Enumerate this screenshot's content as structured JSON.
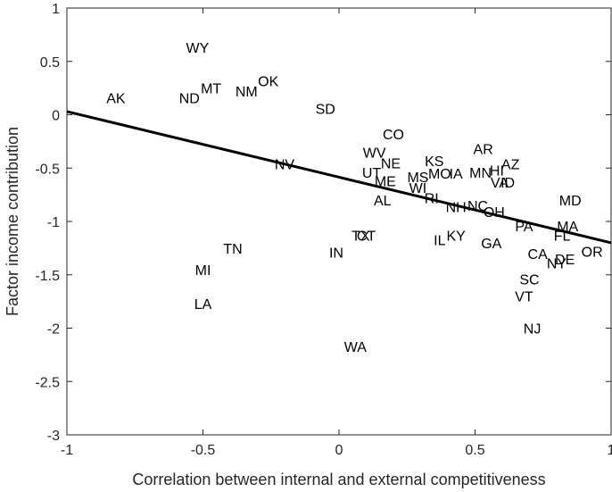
{
  "chart_data": {
    "type": "scatter",
    "title": "",
    "xlabel": "Correlation between internal and external competitiveness",
    "ylabel": "Factor income contribution",
    "xlim": [
      -1,
      1
    ],
    "ylim": [
      -3,
      1
    ],
    "xticks": [
      -1,
      -0.5,
      0,
      0.5,
      1
    ],
    "xtick_labels": [
      "-1",
      "-0.5",
      "0",
      "0.5",
      "1"
    ],
    "yticks": [
      -3,
      -2.5,
      -2,
      -1.5,
      -1,
      -0.5,
      0,
      0.5,
      1
    ],
    "ytick_labels": [
      "-3",
      "-2.5",
      "-2",
      "-1.5",
      "-1",
      "-0.5",
      "0",
      "0.5",
      "1"
    ],
    "grid": false,
    "legend": "none",
    "points": [
      {
        "label": "WY",
        "x": -0.52,
        "y": 0.63
      },
      {
        "label": "AK",
        "x": -0.82,
        "y": 0.16
      },
      {
        "label": "ND",
        "x": -0.55,
        "y": 0.16
      },
      {
        "label": "MT",
        "x": -0.47,
        "y": 0.25
      },
      {
        "label": "NM",
        "x": -0.34,
        "y": 0.22
      },
      {
        "label": "OK",
        "x": -0.26,
        "y": 0.32
      },
      {
        "label": "SD",
        "x": -0.05,
        "y": 0.06
      },
      {
        "label": "CO",
        "x": 0.2,
        "y": -0.18
      },
      {
        "label": "NV",
        "x": -0.2,
        "y": -0.46
      },
      {
        "label": "WV",
        "x": 0.13,
        "y": -0.35
      },
      {
        "label": "NE",
        "x": 0.19,
        "y": -0.45
      },
      {
        "label": "UT",
        "x": 0.12,
        "y": -0.54
      },
      {
        "label": "ME",
        "x": 0.17,
        "y": -0.62
      },
      {
        "label": "KS",
        "x": 0.35,
        "y": -0.43
      },
      {
        "label": "MS",
        "x": 0.29,
        "y": -0.58
      },
      {
        "label": "MO",
        "x": 0.37,
        "y": -0.55
      },
      {
        "label": "IA",
        "x": 0.43,
        "y": -0.55
      },
      {
        "label": "WI",
        "x": 0.29,
        "y": -0.68
      },
      {
        "label": "AR",
        "x": 0.53,
        "y": -0.32
      },
      {
        "label": "MN",
        "x": 0.52,
        "y": -0.54
      },
      {
        "label": "HI",
        "x": 0.58,
        "y": -0.52
      },
      {
        "label": "AZ",
        "x": 0.63,
        "y": -0.46
      },
      {
        "label": "VA",
        "x": 0.59,
        "y": -0.63
      },
      {
        "label": "ID",
        "x": 0.62,
        "y": -0.63
      },
      {
        "label": "AL",
        "x": 0.16,
        "y": -0.8
      },
      {
        "label": "RI",
        "x": 0.34,
        "y": -0.78
      },
      {
        "label": "NH",
        "x": 0.43,
        "y": -0.86
      },
      {
        "label": "NC",
        "x": 0.51,
        "y": -0.85
      },
      {
        "label": "OH",
        "x": 0.57,
        "y": -0.91
      },
      {
        "label": "MD",
        "x": 0.85,
        "y": -0.8
      },
      {
        "label": "PA",
        "x": 0.68,
        "y": -1.04
      },
      {
        "label": "MA",
        "x": 0.84,
        "y": -1.04
      },
      {
        "label": "FL",
        "x": 0.82,
        "y": -1.13
      },
      {
        "label": "TX",
        "x": 0.08,
        "y": -1.13
      },
      {
        "label": "CT",
        "x": 0.1,
        "y": -1.13
      },
      {
        "label": "KY",
        "x": 0.43,
        "y": -1.13
      },
      {
        "label": "IL",
        "x": 0.37,
        "y": -1.17
      },
      {
        "label": "GA",
        "x": 0.56,
        "y": -1.2
      },
      {
        "label": "TN",
        "x": -0.39,
        "y": -1.25
      },
      {
        "label": "IN",
        "x": -0.01,
        "y": -1.29
      },
      {
        "label": "CA",
        "x": 0.73,
        "y": -1.3
      },
      {
        "label": "DE",
        "x": 0.83,
        "y": -1.35
      },
      {
        "label": "NY",
        "x": 0.8,
        "y": -1.39
      },
      {
        "label": "OR",
        "x": 0.93,
        "y": -1.28
      },
      {
        "label": "MI",
        "x": -0.5,
        "y": -1.45
      },
      {
        "label": "SC",
        "x": 0.7,
        "y": -1.54
      },
      {
        "label": "VT",
        "x": 0.68,
        "y": -1.7
      },
      {
        "label": "LA",
        "x": -0.5,
        "y": -1.77
      },
      {
        "label": "NJ",
        "x": 0.71,
        "y": -2.0
      },
      {
        "label": "WA",
        "x": 0.06,
        "y": -2.17
      }
    ],
    "fit_line": {
      "x": [
        -1,
        1
      ],
      "y": [
        0.03,
        -1.2
      ]
    }
  }
}
